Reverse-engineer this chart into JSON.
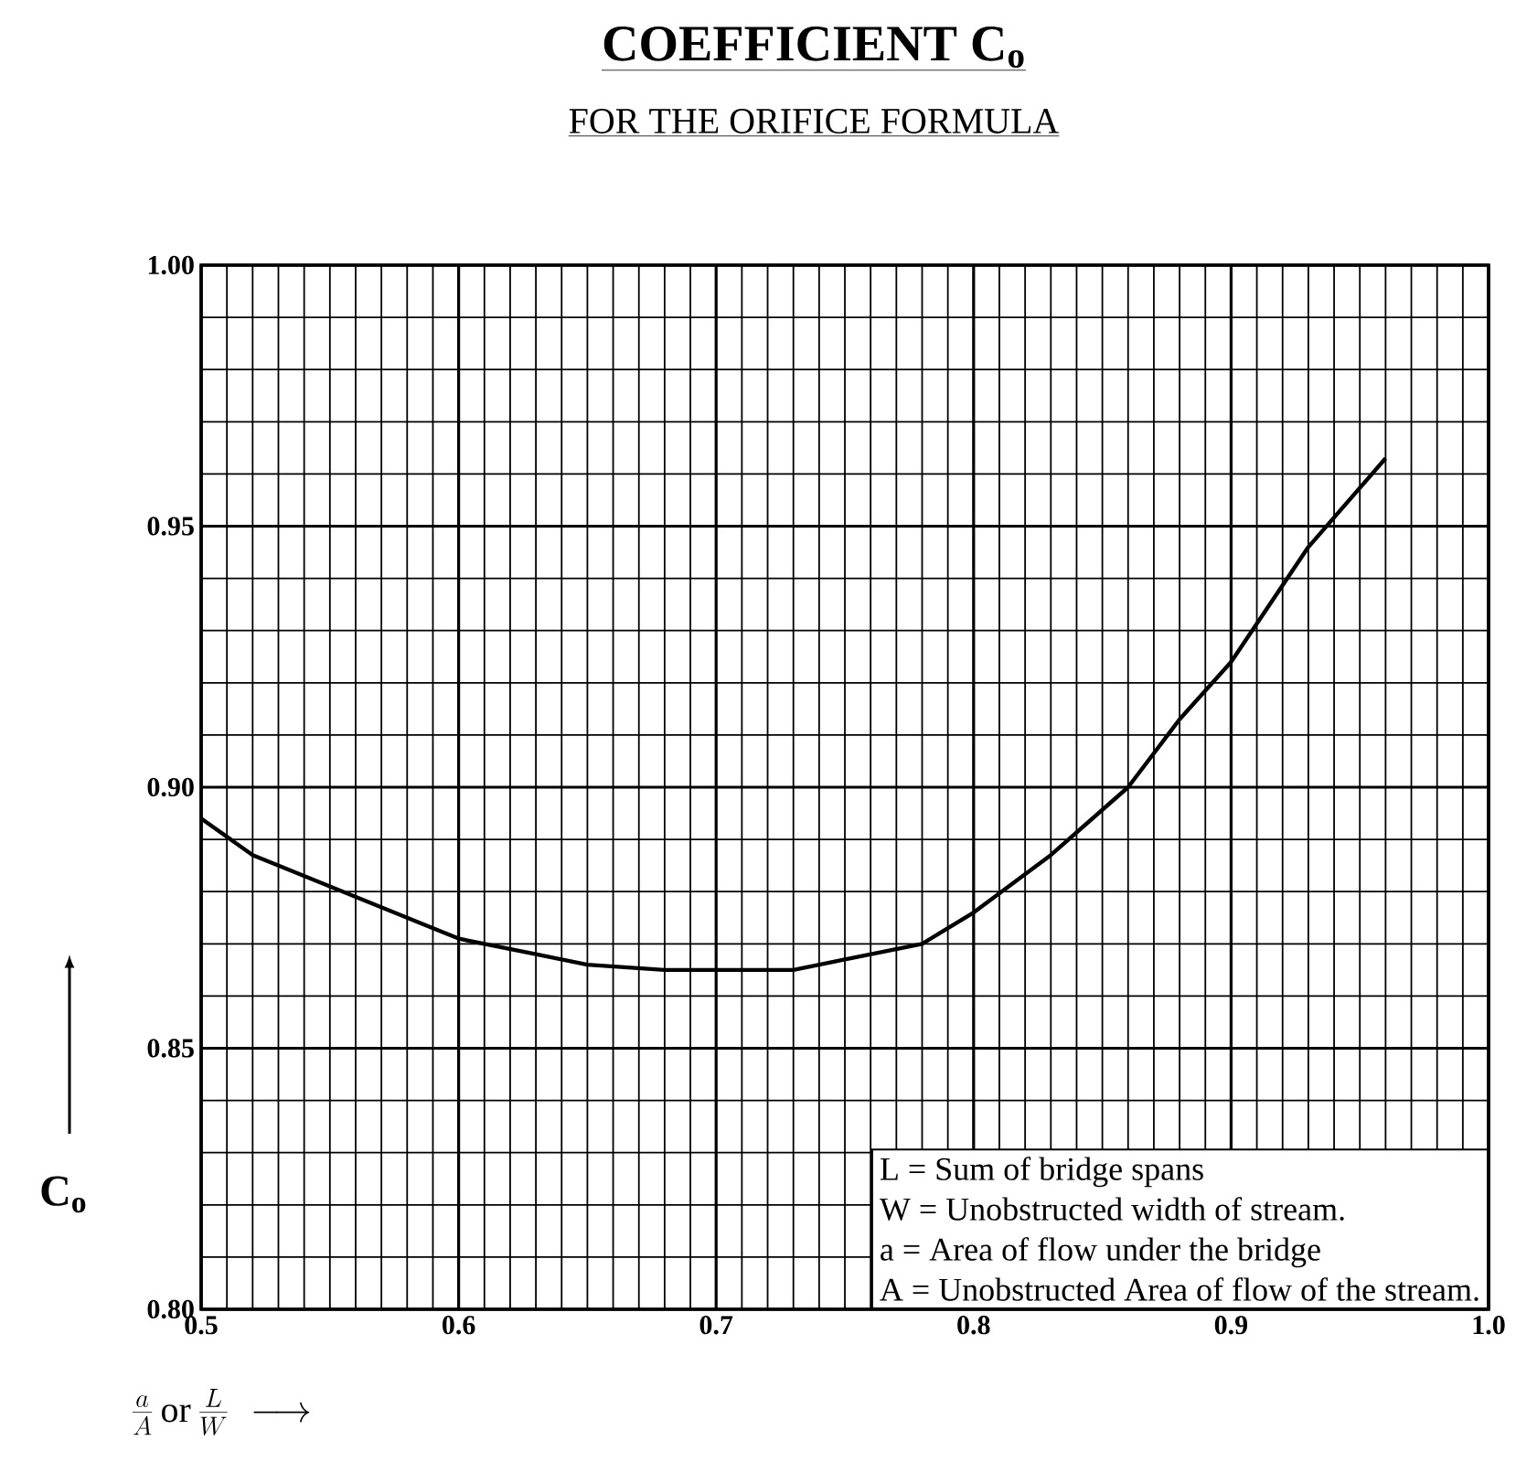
{
  "chart_data": {
    "type": "line",
    "title": "COEFFICIENT C$_{o}$",
    "subtitle": "FOR THE ORIFICE FORMULA",
    "xlabel": "\\frac{a}{A}\\,\\mathrm{or}\\,\\frac{L}{W}\\;\\longrightarrow",
    "ylabel": "C$_{o}$",
    "annotations": [
      "L = Sum of bridge spans",
      "W = Unobstructed width of stream.",
      "a = Area of flow under the bridge",
      "A = Unobstructed Area of flow of the stream."
    ],
    "x": [
      0.5,
      0.52,
      0.55,
      0.58,
      0.6,
      0.63,
      0.65,
      0.68,
      0.7,
      0.73,
      0.75,
      0.78,
      0.8,
      0.83,
      0.86,
      0.88,
      0.9,
      0.93,
      0.96
    ],
    "values": [
      0.894,
      0.887,
      0.881,
      0.875,
      0.871,
      0.868,
      0.866,
      0.865,
      0.865,
      0.865,
      0.867,
      0.87,
      0.876,
      0.887,
      0.9,
      0.913,
      0.924,
      0.946,
      0.963
    ],
    "color": "#000000",
    "xlim": [
      0.5,
      1.0
    ],
    "ylim": [
      0.8,
      1.0
    ],
    "xticks": [
      0.5,
      0.6,
      0.7,
      0.8,
      0.9,
      {
        "value": 1.0,
        "label": "1.0"
      }
    ],
    "yticks": [
      {
        "value": 0.8,
        "label": "0.80"
      },
      0.85,
      {
        "value": 0.9,
        "label": "0.90"
      },
      0.95,
      {
        "value": 1.0,
        "label": "1.00"
      }
    ],
    "grid": true
  }
}
